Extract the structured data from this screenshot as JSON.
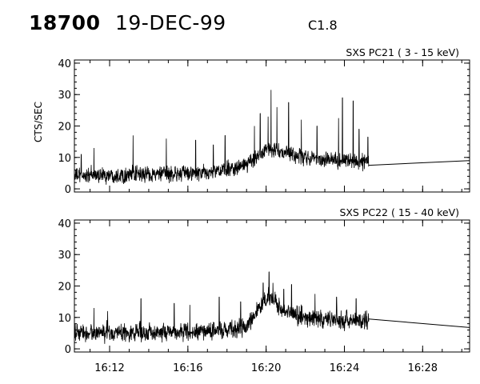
{
  "header": {
    "event_id": "18700",
    "date": "19-DEC-99",
    "flare_class": "C1.8"
  },
  "chart_data": [
    {
      "type": "line",
      "title": "SXS PC21  (  3 - 15 keV)",
      "xlabel": "",
      "ylabel": "CTS/SEC",
      "x_tick_labels": [
        "16:12",
        "16:16",
        "16:20",
        "16:24",
        "16:28"
      ],
      "x_ticks_min": [
        12,
        16,
        20,
        24,
        28
      ],
      "xlim_min": [
        10.2,
        30.4
      ],
      "ylim": [
        -1,
        41
      ],
      "y_ticks": [
        0,
        10,
        20,
        30,
        40
      ],
      "x_minor_tick_step_min": 1,
      "y_minor_tick_step": 2,
      "grid": false,
      "data_end_min": 25.25,
      "baseline": [
        [
          10.2,
          4.2
        ],
        [
          17.0,
          5.0
        ],
        [
          19.0,
          7.5
        ],
        [
          20.0,
          13.0
        ],
        [
          20.5,
          12.0
        ],
        [
          22.0,
          10.0
        ],
        [
          24.0,
          9.0
        ],
        [
          25.25,
          8.5
        ]
      ],
      "noise_amp": 3.6,
      "spikes": [
        [
          10.55,
          11.0
        ],
        [
          11.2,
          13.0
        ],
        [
          13.2,
          17.0
        ],
        [
          14.9,
          16.0
        ],
        [
          16.4,
          15.5
        ],
        [
          17.3,
          14.0
        ],
        [
          17.9,
          17.0
        ],
        [
          19.4,
          20.0
        ],
        [
          19.7,
          24.0
        ],
        [
          20.1,
          23.0
        ],
        [
          20.25,
          31.5
        ],
        [
          20.55,
          26.0
        ],
        [
          21.15,
          27.5
        ],
        [
          21.8,
          22.0
        ],
        [
          22.6,
          20.0
        ],
        [
          23.7,
          22.5
        ],
        [
          23.9,
          29.0
        ],
        [
          24.45,
          28.0
        ],
        [
          24.75,
          19.0
        ],
        [
          25.2,
          16.5
        ]
      ],
      "tail": [
        [
          25.25,
          7.5
        ],
        [
          30.4,
          9.0
        ]
      ]
    },
    {
      "type": "line",
      "title": "SXS PC22  ( 15 - 40 keV)",
      "xlabel": "",
      "ylabel": "",
      "x_tick_labels": [
        "16:12",
        "16:16",
        "16:20",
        "16:24",
        "16:28"
      ],
      "x_ticks_min": [
        12,
        16,
        20,
        24,
        28
      ],
      "xlim_min": [
        10.2,
        30.4
      ],
      "ylim": [
        -1,
        41
      ],
      "y_ticks": [
        0,
        10,
        20,
        30,
        40
      ],
      "x_minor_tick_step_min": 1,
      "y_minor_tick_step": 2,
      "grid": false,
      "data_end_min": 25.25,
      "baseline": [
        [
          10.2,
          5.0
        ],
        [
          17.0,
          5.5
        ],
        [
          19.0,
          7.0
        ],
        [
          19.9,
          15.0
        ],
        [
          20.2,
          17.0
        ],
        [
          20.8,
          12.0
        ],
        [
          22.0,
          10.0
        ],
        [
          24.0,
          9.0
        ],
        [
          25.25,
          9.0
        ]
      ],
      "noise_amp": 4.0,
      "spikes": [
        [
          11.2,
          13.0
        ],
        [
          11.9,
          12.0
        ],
        [
          13.6,
          16.0
        ],
        [
          15.3,
          14.5
        ],
        [
          16.1,
          14.0
        ],
        [
          17.6,
          16.5
        ],
        [
          18.7,
          15.0
        ],
        [
          19.85,
          21.0
        ],
        [
          20.15,
          24.5
        ],
        [
          20.35,
          21.0
        ],
        [
          20.9,
          19.0
        ],
        [
          21.3,
          20.5
        ],
        [
          22.5,
          17.5
        ],
        [
          23.6,
          16.5
        ],
        [
          24.6,
          16.0
        ]
      ],
      "tail": [
        [
          25.25,
          9.5
        ],
        [
          30.4,
          6.8
        ]
      ]
    }
  ]
}
